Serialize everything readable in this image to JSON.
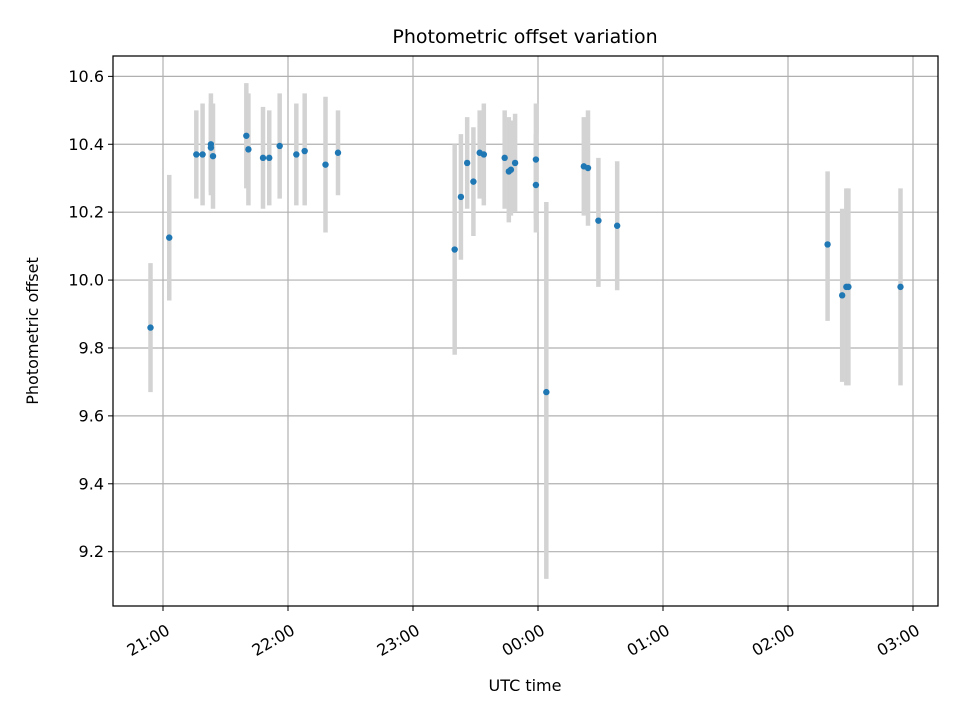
{
  "chart_data": {
    "type": "scatter",
    "title": "Photometric offset variation",
    "xlabel": "UTC time",
    "ylabel": "Photometric offset",
    "xlim": [
      "20:36",
      "03:12"
    ],
    "ylim": [
      9.04,
      10.66
    ],
    "x_ticks": [
      "21:00",
      "22:00",
      "23:00",
      "00:00",
      "01:00",
      "02:00",
      "03:00"
    ],
    "y_ticks": [
      "9.2",
      "9.4",
      "9.6",
      "9.8",
      "10.0",
      "10.2",
      "10.4",
      "10.6"
    ],
    "grid": true,
    "point_color": "#1f77b4",
    "errorbar_color": "#d3d3d3",
    "series": [
      {
        "points": [
          {
            "t": "20:54",
            "y": 9.86,
            "lo": 9.67,
            "hi": 10.05
          },
          {
            "t": "21:03",
            "y": 10.125,
            "lo": 9.94,
            "hi": 10.31
          },
          {
            "t": "21:16",
            "y": 10.37,
            "lo": 10.24,
            "hi": 10.5
          },
          {
            "t": "21:19",
            "y": 10.37,
            "lo": 10.22,
            "hi": 10.52
          },
          {
            "t": "21:23",
            "y": 10.4,
            "lo": 10.25,
            "hi": 10.55
          },
          {
            "t": "21:23",
            "y": 10.39,
            "lo": 10.26,
            "hi": 10.52
          },
          {
            "t": "21:24",
            "y": 10.365,
            "lo": 10.21,
            "hi": 10.52
          },
          {
            "t": "21:40",
            "y": 10.425,
            "lo": 10.27,
            "hi": 10.58
          },
          {
            "t": "21:41",
            "y": 10.385,
            "lo": 10.22,
            "hi": 10.55
          },
          {
            "t": "21:48",
            "y": 10.36,
            "lo": 10.21,
            "hi": 10.51
          },
          {
            "t": "21:51",
            "y": 10.36,
            "lo": 10.22,
            "hi": 10.5
          },
          {
            "t": "21:56",
            "y": 10.395,
            "lo": 10.24,
            "hi": 10.55
          },
          {
            "t": "22:04",
            "y": 10.37,
            "lo": 10.22,
            "hi": 10.52
          },
          {
            "t": "22:08",
            "y": 10.38,
            "lo": 10.22,
            "hi": 10.55
          },
          {
            "t": "22:18",
            "y": 10.34,
            "lo": 10.14,
            "hi": 10.54
          },
          {
            "t": "22:24",
            "y": 10.375,
            "lo": 10.25,
            "hi": 10.5
          },
          {
            "t": "23:20",
            "y": 10.09,
            "lo": 9.78,
            "hi": 10.4
          },
          {
            "t": "23:23",
            "y": 10.245,
            "lo": 10.06,
            "hi": 10.43
          },
          {
            "t": "23:26",
            "y": 10.345,
            "lo": 10.21,
            "hi": 10.48
          },
          {
            "t": "23:29",
            "y": 10.29,
            "lo": 10.13,
            "hi": 10.45
          },
          {
            "t": "23:32",
            "y": 10.375,
            "lo": 10.24,
            "hi": 10.5
          },
          {
            "t": "23:34",
            "y": 10.37,
            "lo": 10.22,
            "hi": 10.52
          },
          {
            "t": "23:44",
            "y": 10.36,
            "lo": 10.21,
            "hi": 10.5
          },
          {
            "t": "23:46",
            "y": 10.32,
            "lo": 10.17,
            "hi": 10.48
          },
          {
            "t": "23:47",
            "y": 10.325,
            "lo": 10.19,
            "hi": 10.47
          },
          {
            "t": "23:49",
            "y": 10.345,
            "lo": 10.2,
            "hi": 10.49
          },
          {
            "t": "23:59",
            "y": 10.355,
            "lo": 10.18,
            "hi": 10.52
          },
          {
            "t": "23:59",
            "y": 10.28,
            "lo": 10.14,
            "hi": 10.43
          },
          {
            "t": "00:04",
            "y": 9.67,
            "lo": 9.12,
            "hi": 10.23
          },
          {
            "t": "00:22",
            "y": 10.335,
            "lo": 10.19,
            "hi": 10.48
          },
          {
            "t": "00:24",
            "y": 10.33,
            "lo": 10.16,
            "hi": 10.5
          },
          {
            "t": "00:29",
            "y": 10.175,
            "lo": 9.98,
            "hi": 10.36
          },
          {
            "t": "00:38",
            "y": 10.16,
            "lo": 9.97,
            "hi": 10.35
          },
          {
            "t": "02:19",
            "y": 10.105,
            "lo": 9.88,
            "hi": 10.32
          },
          {
            "t": "02:26",
            "y": 9.955,
            "lo": 9.7,
            "hi": 10.21
          },
          {
            "t": "02:28",
            "y": 9.98,
            "lo": 9.69,
            "hi": 10.27
          },
          {
            "t": "02:29",
            "y": 9.98,
            "lo": 9.69,
            "hi": 10.27
          },
          {
            "t": "02:54",
            "y": 9.98,
            "lo": 9.69,
            "hi": 10.27
          }
        ]
      }
    ]
  }
}
